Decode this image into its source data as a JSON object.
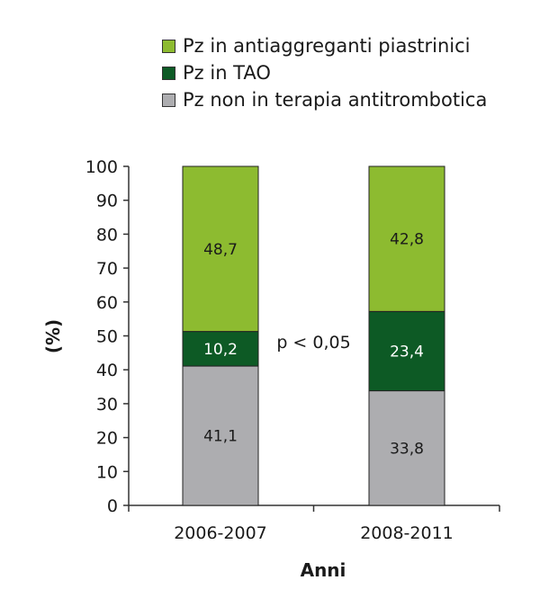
{
  "chart_data": {
    "type": "bar",
    "stacked": true,
    "categories": [
      "2006-2007",
      "2008-2011"
    ],
    "series": [
      {
        "name": "Pz non in terapia antitrombotica",
        "values": [
          41.1,
          33.8
        ],
        "labels": [
          "41,1",
          "33,8"
        ],
        "color": "#adadb0"
      },
      {
        "name": "Pz in TAO",
        "values": [
          10.2,
          23.4
        ],
        "labels": [
          "10,2",
          "23,4"
        ],
        "color": "#0d5a25"
      },
      {
        "name": "Pz in antiaggreganti piastrinici",
        "values": [
          48.7,
          42.8
        ],
        "labels": [
          "48,7",
          "42,8"
        ],
        "color": "#8dbb30"
      }
    ],
    "legend_order": [
      "Pz in antiaggreganti piastrinici",
      "Pz in TAO",
      "Pz non in terapia antitrombotica"
    ],
    "xlabel": "Anni",
    "ylabel": "(%)",
    "ylim": [
      0,
      100
    ],
    "yticks": [
      0,
      10,
      20,
      30,
      40,
      50,
      60,
      70,
      80,
      90,
      100
    ],
    "annotation": "p < 0,05",
    "legend_position": "top",
    "grid": false
  }
}
